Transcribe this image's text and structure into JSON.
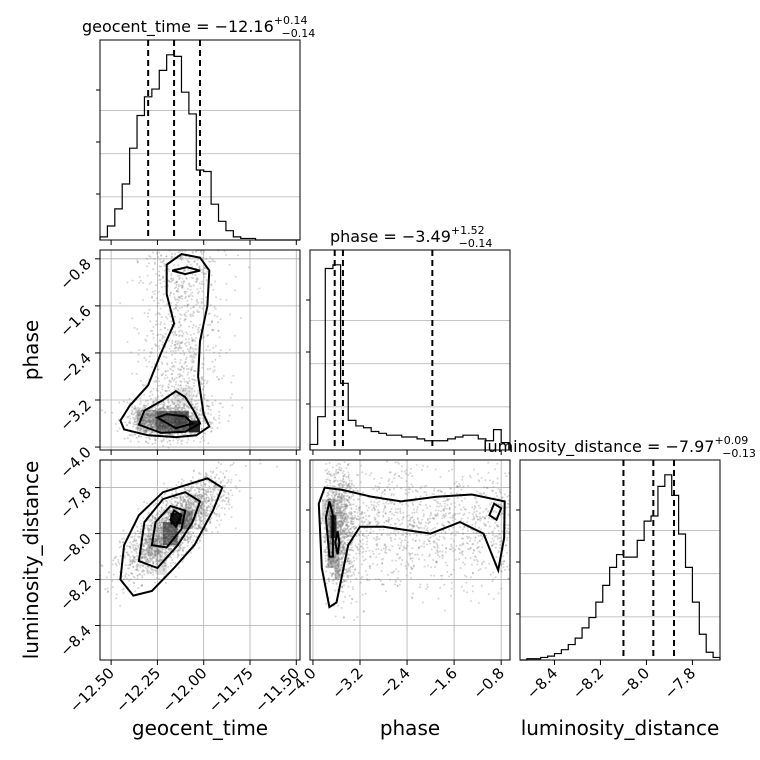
{
  "chart_data": {
    "type": "corner",
    "title": "",
    "parameters": [
      "geocent_time",
      "phase",
      "luminosity_distance"
    ],
    "axis_labels": {
      "geocent_time": "geocent_time",
      "phase": "phase",
      "luminosity_distance": "luminosity_distance"
    },
    "axis_ranges": {
      "geocent_time": [
        -12.56,
        -11.48
      ],
      "phase": [
        -4.05,
        -0.65
      ],
      "luminosity_distance": [
        -8.55,
        -7.68
      ]
    },
    "ticks": {
      "geocent_time": [
        {
          "value": -12.5,
          "label": "−12.50"
        },
        {
          "value": -12.25,
          "label": "−12.25"
        },
        {
          "value": -12.0,
          "label": "−12.00"
        },
        {
          "value": -11.75,
          "label": "−11.75"
        },
        {
          "value": -11.5,
          "label": "−11.50"
        }
      ],
      "phase": [
        {
          "value": -4.0,
          "label": "−4.0"
        },
        {
          "value": -3.2,
          "label": "−3.2"
        },
        {
          "value": -2.4,
          "label": "−2.4"
        },
        {
          "value": -1.6,
          "label": "−1.6"
        },
        {
          "value": -0.8,
          "label": "−0.8"
        }
      ],
      "luminosity_distance": [
        {
          "value": -8.4,
          "label": "−8.4"
        },
        {
          "value": -8.2,
          "label": "−8.2"
        },
        {
          "value": -8.0,
          "label": "−8.0"
        },
        {
          "value": -7.8,
          "label": "−7.8"
        }
      ]
    },
    "diag_titles": [
      {
        "param": "geocent_time",
        "text": "geocent_time = −12.16",
        "sup": "+0.14",
        "sub": "−0.14"
      },
      {
        "param": "phase",
        "text": "phase = −3.49",
        "sup": "+1.52",
        "sub": "−0.14"
      },
      {
        "param": "luminosity_distance",
        "text": "luminosity_distance = −7.97",
        "sup": "+0.09",
        "sub": "−0.13"
      }
    ],
    "quantiles": {
      "geocent_time": [
        -12.3,
        -12.16,
        -12.02
      ],
      "phase": [
        -3.63,
        -3.49,
        -1.97
      ],
      "luminosity_distance": [
        -8.1,
        -7.97,
        -7.88
      ]
    },
    "histograms": {
      "geocent_time": {
        "edges": [
          -12.56,
          -12.52,
          -12.48,
          -12.44,
          -12.4,
          -12.36,
          -12.32,
          -12.28,
          -12.24,
          -12.2,
          -12.16,
          -12.12,
          -12.08,
          -12.04,
          -12.0,
          -11.96,
          -11.92,
          -11.88,
          -11.84,
          -11.8,
          -11.76,
          -11.72,
          -11.68,
          -11.64,
          -11.6,
          -11.56,
          -11.52,
          -11.48
        ],
        "counts": [
          2,
          9,
          20,
          36,
          59,
          80,
          92,
          97,
          109,
          119,
          118,
          95,
          81,
          45,
          44,
          23,
          12,
          6,
          2,
          1,
          1,
          0,
          0,
          0,
          0,
          0,
          0
        ]
      },
      "phase": {
        "edges": [
          -4.05,
          -3.92,
          -3.79,
          -3.66,
          -3.53,
          -3.4,
          -3.27,
          -3.14,
          -3.01,
          -2.88,
          -2.75,
          -2.62,
          -2.49,
          -2.36,
          -2.23,
          -2.1,
          -1.97,
          -1.84,
          -1.71,
          -1.58,
          -1.45,
          -1.32,
          -1.19,
          -1.06,
          -0.93,
          -0.8,
          -0.67
        ],
        "counts": [
          3,
          18,
          98,
          100,
          36,
          16,
          13,
          12,
          10,
          9,
          8,
          8,
          7,
          7,
          6,
          5,
          5,
          5,
          6,
          7,
          8,
          8,
          6,
          5,
          11,
          4
        ]
      },
      "luminosity_distance": {
        "edges": [
          -8.55,
          -8.52,
          -8.49,
          -8.46,
          -8.43,
          -8.4,
          -8.37,
          -8.34,
          -8.31,
          -8.28,
          -8.25,
          -8.22,
          -8.19,
          -8.16,
          -8.13,
          -8.1,
          -8.07,
          -8.04,
          -8.01,
          -7.98,
          -7.95,
          -7.92,
          -7.89,
          -7.86,
          -7.83,
          -7.8,
          -7.77,
          -7.74,
          -7.71,
          -7.68
        ],
        "counts": [
          0,
          1,
          1,
          2,
          3,
          5,
          8,
          12,
          17,
          25,
          33,
          45,
          58,
          72,
          82,
          80,
          80,
          93,
          108,
          112,
          135,
          144,
          128,
          98,
          72,
          45,
          20,
          6,
          2
        ]
      }
    },
    "contours_2d": {
      "phase_vs_geocent_time": [
        [
          [
            -12.43,
            -3.7
          ],
          [
            -12.3,
            -3.8
          ],
          [
            -12.15,
            -3.83
          ],
          [
            -12.04,
            -3.8
          ],
          [
            -11.97,
            -3.65
          ],
          [
            -12.0,
            -3.45
          ],
          [
            -12.03,
            -2.8
          ],
          [
            -12.02,
            -2.2
          ],
          [
            -11.98,
            -1.6
          ],
          [
            -11.97,
            -1.0
          ],
          [
            -12.02,
            -0.78
          ],
          [
            -12.12,
            -0.72
          ],
          [
            -12.2,
            -0.9
          ],
          [
            -12.2,
            -1.4
          ],
          [
            -12.16,
            -1.9
          ],
          [
            -12.23,
            -2.4
          ],
          [
            -12.3,
            -2.95
          ],
          [
            -12.4,
            -3.3
          ],
          [
            -12.45,
            -3.55
          ],
          [
            -12.43,
            -3.7
          ]
        ],
        [
          [
            -12.35,
            -3.62
          ],
          [
            -12.23,
            -3.76
          ],
          [
            -12.1,
            -3.74
          ],
          [
            -12.02,
            -3.6
          ],
          [
            -12.05,
            -3.4
          ],
          [
            -12.1,
            -3.15
          ],
          [
            -12.15,
            -3.05
          ],
          [
            -12.22,
            -3.2
          ],
          [
            -12.32,
            -3.38
          ],
          [
            -12.35,
            -3.62
          ]
        ],
        [
          [
            -12.25,
            -3.5
          ],
          [
            -12.15,
            -3.68
          ],
          [
            -12.06,
            -3.6
          ],
          [
            -12.1,
            -3.48
          ],
          [
            -12.2,
            -3.44
          ],
          [
            -12.25,
            -3.5
          ]
        ],
        [
          [
            -12.17,
            -1.0
          ],
          [
            -12.1,
            -1.06
          ],
          [
            -12.02,
            -1.0
          ],
          [
            -12.09,
            -0.94
          ],
          [
            -12.17,
            -1.0
          ]
        ]
      ],
      "luminosity_distance_vs_geocent_time": [
        [
          [
            -12.45,
            -8.2
          ],
          [
            -12.38,
            -8.27
          ],
          [
            -12.28,
            -8.25
          ],
          [
            -12.16,
            -8.15
          ],
          [
            -12.05,
            -8.05
          ],
          [
            -11.95,
            -7.9
          ],
          [
            -11.9,
            -7.8
          ],
          [
            -11.98,
            -7.76
          ],
          [
            -12.1,
            -7.79
          ],
          [
            -12.22,
            -7.82
          ],
          [
            -12.35,
            -7.92
          ],
          [
            -12.43,
            -8.05
          ],
          [
            -12.45,
            -8.2
          ]
        ],
        [
          [
            -12.35,
            -8.12
          ],
          [
            -12.25,
            -8.15
          ],
          [
            -12.14,
            -8.05
          ],
          [
            -12.06,
            -7.95
          ],
          [
            -12.02,
            -7.86
          ],
          [
            -12.1,
            -7.82
          ],
          [
            -12.22,
            -7.85
          ],
          [
            -12.32,
            -7.95
          ],
          [
            -12.35,
            -8.12
          ]
        ],
        [
          [
            -12.28,
            -8.05
          ],
          [
            -12.2,
            -8.06
          ],
          [
            -12.12,
            -7.98
          ],
          [
            -12.1,
            -7.9
          ],
          [
            -12.18,
            -7.88
          ],
          [
            -12.26,
            -7.95
          ],
          [
            -12.28,
            -8.05
          ]
        ],
        [
          [
            -12.18,
            -7.94
          ],
          [
            -12.15,
            -7.97
          ],
          [
            -12.12,
            -7.92
          ],
          [
            -12.16,
            -7.9
          ],
          [
            -12.18,
            -7.94
          ]
        ]
      ],
      "luminosity_distance_vs_phase": [
        [
          [
            -3.9,
            -7.87
          ],
          [
            -3.85,
            -8.15
          ],
          [
            -3.72,
            -8.32
          ],
          [
            -3.6,
            -8.3
          ],
          [
            -3.4,
            -8.05
          ],
          [
            -3.2,
            -7.97
          ],
          [
            -2.8,
            -7.97
          ],
          [
            -2.0,
            -8.0
          ],
          [
            -1.5,
            -7.95
          ],
          [
            -1.1,
            -8.0
          ],
          [
            -0.85,
            -8.16
          ],
          [
            -0.75,
            -8.02
          ],
          [
            -0.74,
            -7.86
          ],
          [
            -1.3,
            -7.83
          ],
          [
            -1.9,
            -7.84
          ],
          [
            -2.5,
            -7.86
          ],
          [
            -3.0,
            -7.84
          ],
          [
            -3.5,
            -7.81
          ],
          [
            -3.8,
            -7.8
          ],
          [
            -3.9,
            -7.87
          ]
        ],
        [
          [
            -3.78,
            -7.93
          ],
          [
            -3.72,
            -8.1
          ],
          [
            -3.66,
            -8.1
          ],
          [
            -3.66,
            -7.92
          ],
          [
            -3.72,
            -7.86
          ],
          [
            -3.78,
            -7.93
          ]
        ],
        [
          [
            -3.62,
            -8.04
          ],
          [
            -3.58,
            -8.09
          ],
          [
            -3.55,
            -8.04
          ],
          [
            -3.58,
            -7.99
          ],
          [
            -3.62,
            -8.04
          ]
        ],
        [
          [
            -1.0,
            -7.92
          ],
          [
            -0.88,
            -7.94
          ],
          [
            -0.8,
            -7.89
          ],
          [
            -0.92,
            -7.87
          ],
          [
            -1.0,
            -7.92
          ]
        ]
      ]
    },
    "grid": true,
    "legend": "none"
  }
}
